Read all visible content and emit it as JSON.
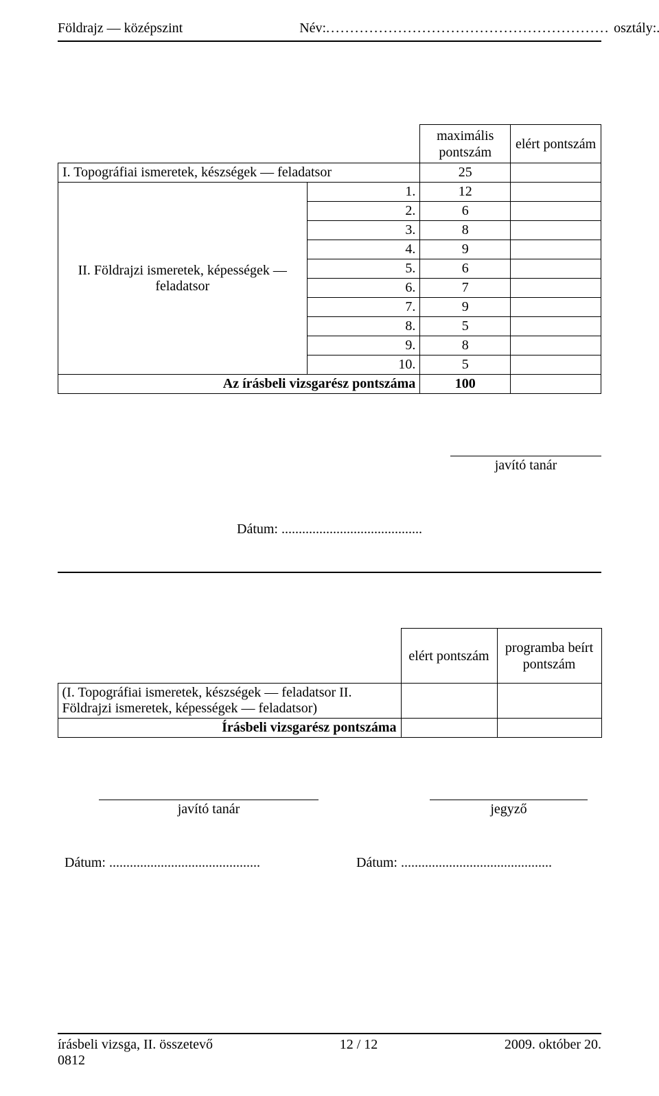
{
  "header": {
    "subject": "Földrajz — középszint",
    "nev_label": "Név:",
    "nev_dots": "...........................................................",
    "osztaly_label": "osztály:",
    "osztaly_dots": "....."
  },
  "scoreTable": {
    "head_max": "maximális pontszám",
    "head_elert": "elért pontszám",
    "topo_label": "I. Topográfiai ismeretek, készségek — feladatsor",
    "topo_score": "25",
    "part2_label": "II. Földrajzi ismeretek, képességek — feladatsor",
    "items": [
      {
        "num": "1.",
        "max": "12"
      },
      {
        "num": "2.",
        "max": "6"
      },
      {
        "num": "3.",
        "max": "8"
      },
      {
        "num": "4.",
        "max": "9"
      },
      {
        "num": "5.",
        "max": "6"
      },
      {
        "num": "6.",
        "max": "7"
      },
      {
        "num": "7.",
        "max": "9"
      },
      {
        "num": "8.",
        "max": "5"
      },
      {
        "num": "9.",
        "max": "8"
      },
      {
        "num": "10.",
        "max": "5"
      }
    ],
    "total_label": "Az írásbeli vizsgarész pontszáma",
    "total_max": "100"
  },
  "teacher_label": "javító tanár",
  "datum_center": "Dátum: .........................................",
  "secondTable": {
    "head_elert": "elért pontszám",
    "head_program": "programba beírt pontszám",
    "row1": "(I. Topográfiai ismeretek, készségek — feladatsor II. Földrajzi ismeretek, képességek — feladatsor)",
    "row2": "Írásbeli vizsgarész pontszáma"
  },
  "sign": {
    "javito": "javító tanár",
    "jegyzo": "jegyző"
  },
  "bottom_dates": {
    "date1_label": "Dátum:",
    "date1_dots": "............................................",
    "date2_label": "Dátum:",
    "date2_dots": "............................................"
  },
  "footer": {
    "left_line1": "írásbeli vizsga, II. összetevő",
    "left_line2": "0812",
    "center": "12 / 12",
    "right": "2009. október 20."
  }
}
